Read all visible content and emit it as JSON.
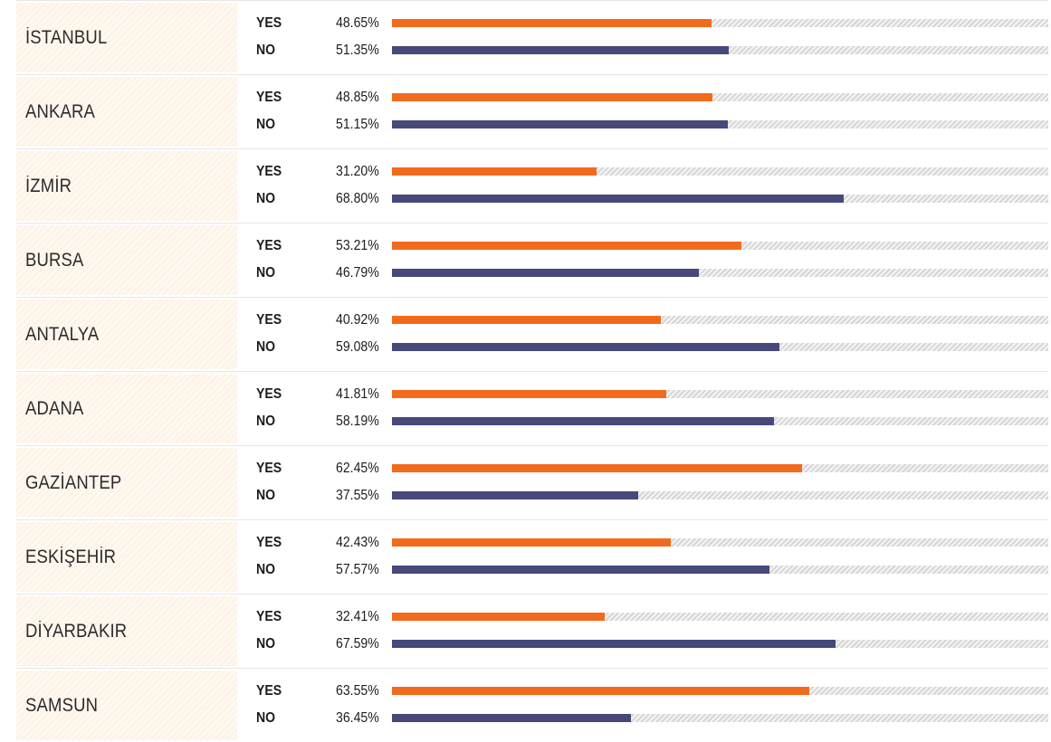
{
  "colors": {
    "yes": "#f26b1d",
    "no": "#46497a",
    "label_bg": "#fdf3e6"
  },
  "chart_data": {
    "type": "bar",
    "orientation": "horizontal",
    "ylim": [
      0,
      100
    ],
    "unit": "%",
    "series": [
      {
        "name": "YES",
        "values": [
          48.65,
          48.85,
          31.2,
          53.21,
          40.92,
          41.81,
          62.45,
          42.43,
          32.41,
          63.55
        ]
      },
      {
        "name": "NO",
        "values": [
          51.35,
          51.15,
          68.8,
          46.79,
          59.08,
          58.19,
          37.55,
          57.57,
          67.59,
          36.45
        ]
      }
    ],
    "categories": [
      "İSTANBUL",
      "ANKARA",
      "İZMİR",
      "BURSA",
      "ANTALYA",
      "ADANA",
      "GAZİANTEP",
      "ESKİŞEHİR",
      "DİYARBAKIR",
      "SAMSUN"
    ]
  },
  "rows": [
    {
      "city": "İSTANBUL",
      "yes_label": "YES",
      "yes_pct": "48.65%",
      "yes_value": 48.65,
      "no_label": "NO",
      "no_pct": "51.35%",
      "no_value": 51.35
    },
    {
      "city": "ANKARA",
      "yes_label": "YES",
      "yes_pct": "48.85%",
      "yes_value": 48.85,
      "no_label": "NO",
      "no_pct": "51.15%",
      "no_value": 51.15
    },
    {
      "city": "İZMİR",
      "yes_label": "YES",
      "yes_pct": "31.20%",
      "yes_value": 31.2,
      "no_label": "NO",
      "no_pct": "68.80%",
      "no_value": 68.8
    },
    {
      "city": "BURSA",
      "yes_label": "YES",
      "yes_pct": "53.21%",
      "yes_value": 53.21,
      "no_label": "NO",
      "no_pct": "46.79%",
      "no_value": 46.79
    },
    {
      "city": "ANTALYA",
      "yes_label": "YES",
      "yes_pct": "40.92%",
      "yes_value": 40.92,
      "no_label": "NO",
      "no_pct": "59.08%",
      "no_value": 59.08
    },
    {
      "city": "ADANA",
      "yes_label": "YES",
      "yes_pct": "41.81%",
      "yes_value": 41.81,
      "no_label": "NO",
      "no_pct": "58.19%",
      "no_value": 58.19
    },
    {
      "city": "GAZİANTEP",
      "yes_label": "YES",
      "yes_pct": "62.45%",
      "yes_value": 62.45,
      "no_label": "NO",
      "no_pct": "37.55%",
      "no_value": 37.55
    },
    {
      "city": "ESKİŞEHİR",
      "yes_label": "YES",
      "yes_pct": "42.43%",
      "yes_value": 42.43,
      "no_label": "NO",
      "no_pct": "57.57%",
      "no_value": 57.57
    },
    {
      "city": "DİYARBAKIR",
      "yes_label": "YES",
      "yes_pct": "32.41%",
      "yes_value": 32.41,
      "no_label": "NO",
      "no_pct": "67.59%",
      "no_value": 67.59
    },
    {
      "city": "SAMSUN",
      "yes_label": "YES",
      "yes_pct": "63.55%",
      "yes_value": 63.55,
      "no_label": "NO",
      "no_pct": "36.45%",
      "no_value": 36.45
    }
  ]
}
